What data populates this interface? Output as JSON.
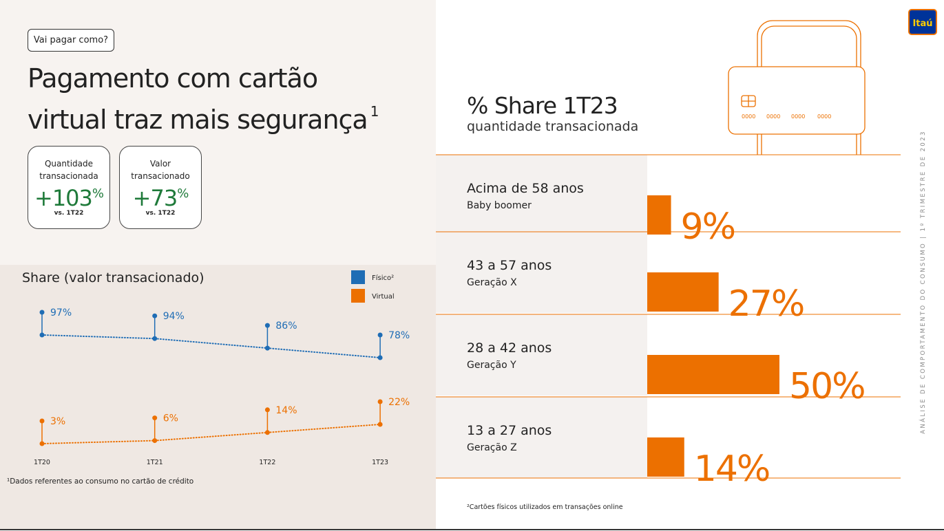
{
  "tag": "Vai pagar como?",
  "title": "Pagamento com cartão virtual traz mais segurança",
  "title_note": "1",
  "kpis": [
    {
      "label": "Quantidade transacionada",
      "value": "+103",
      "unit": "%",
      "note": "vs. 1T22"
    },
    {
      "label": "Valor transacionado",
      "value": "+73",
      "unit": "%",
      "note": "vs. 1T22"
    }
  ],
  "chart_data": [
    {
      "type": "line",
      "title": "Share (valor transacionado)",
      "categories": [
        "1T20",
        "1T21",
        "1T22",
        "1T23"
      ],
      "series": [
        {
          "name": "Físico²",
          "color": "#1f6db5",
          "values": [
            97,
            94,
            86,
            78
          ],
          "value_labels": [
            "97%",
            "94%",
            "86%",
            "78%"
          ]
        },
        {
          "name": "Virtual",
          "color": "#ec7000",
          "values": [
            3,
            6,
            14,
            22
          ],
          "value_labels": [
            "3%",
            "6%",
            "14%",
            "22%"
          ]
        }
      ]
    },
    {
      "type": "hbar",
      "title": "% Share 1T23",
      "subtitle": "quantidade transacionada",
      "categories": [
        "Acima de 58 anos",
        "43 a 57 anos",
        "28 a 42 anos",
        "13 a 27 anos"
      ],
      "sublabels": [
        "Baby boomer",
        "Geração X",
        "Geração Y",
        "Geração Z"
      ],
      "values": [
        9,
        27,
        50,
        14
      ],
      "value_labels": [
        "9%",
        "27%",
        "50%",
        "14%"
      ],
      "color": "#ec7000"
    }
  ],
  "footnotes": [
    "¹Dados referentes ao consumo no cartão de crédito",
    "²Cartões físicos utilizados em transações online"
  ],
  "side_text": "ANÁLISE DE COMPORTAMENTO DO CONSUMO | 1º TRIMESTRE DE 2023",
  "logo": "Itaú"
}
